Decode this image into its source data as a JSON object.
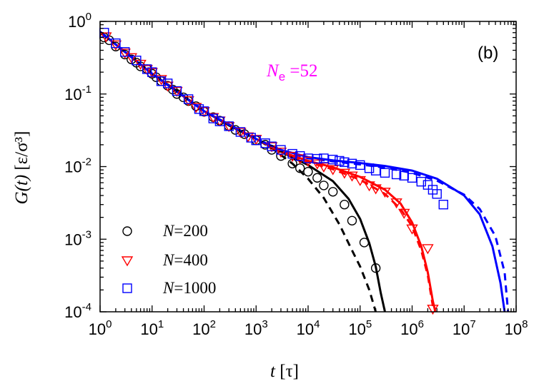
{
  "chart_data": {
    "type": "scatter",
    "panel_label": "(b)",
    "annotation": {
      "text": "N",
      "sub": "e",
      "rest": " =52",
      "color": "#ff00ff"
    },
    "xlabel": {
      "italic": "t",
      "unit": "[τ]"
    },
    "ylabel": {
      "italic": "G(t)",
      "unit": "[ε/σ³]"
    },
    "xscale": "log",
    "yscale": "log",
    "xlim": [
      1,
      100000000
    ],
    "ylim": [
      0.0001,
      1
    ],
    "x_ticks": [
      {
        "value": 1,
        "base": "10",
        "exp": "0"
      },
      {
        "value": 10,
        "base": "10",
        "exp": "1"
      },
      {
        "value": 100,
        "base": "10",
        "exp": "2"
      },
      {
        "value": 1000,
        "base": "10",
        "exp": "3"
      },
      {
        "value": 10000,
        "base": "10",
        "exp": "4"
      },
      {
        "value": 100000,
        "base": "10",
        "exp": "5"
      },
      {
        "value": 1000000,
        "base": "10",
        "exp": "6"
      },
      {
        "value": 10000000,
        "base": "10",
        "exp": "7"
      },
      {
        "value": 100000000,
        "base": "10",
        "exp": "8"
      }
    ],
    "y_ticks": [
      {
        "value": 1,
        "base": "10",
        "exp": "0"
      },
      {
        "value": 0.1,
        "base": "10",
        "exp": "-1"
      },
      {
        "value": 0.01,
        "base": "10",
        "exp": "-2"
      },
      {
        "value": 0.001,
        "base": "10",
        "exp": "-3"
      },
      {
        "value": 0.0001,
        "base": "10",
        "exp": "-4"
      }
    ],
    "legend_position": "bottom-left",
    "series": [
      {
        "name": "N = 200",
        "label_var": "N",
        "label_value": "=200",
        "marker": "circle",
        "color": "#000000",
        "points": [
          [
            1.2,
            0.6
          ],
          [
            1.5,
            0.55
          ],
          [
            2,
            0.45
          ],
          [
            3,
            0.35
          ],
          [
            4,
            0.3
          ],
          [
            5,
            0.27
          ],
          [
            6,
            0.24
          ],
          [
            8,
            0.22
          ],
          [
            10,
            0.19
          ],
          [
            12,
            0.17
          ],
          [
            15,
            0.15
          ],
          [
            20,
            0.13
          ],
          [
            25,
            0.115
          ],
          [
            30,
            0.1
          ],
          [
            40,
            0.09
          ],
          [
            50,
            0.08
          ],
          [
            70,
            0.068
          ],
          [
            100,
            0.057
          ],
          [
            150,
            0.048
          ],
          [
            200,
            0.043
          ],
          [
            300,
            0.036
          ],
          [
            400,
            0.032
          ],
          [
            600,
            0.028
          ],
          [
            1000,
            0.023
          ],
          [
            1500,
            0.02
          ],
          [
            2000,
            0.017
          ],
          [
            3000,
            0.014
          ],
          [
            5000,
            0.011
          ],
          [
            7000,
            0.0095
          ],
          [
            10000,
            0.0085
          ],
          [
            15000,
            0.007
          ],
          [
            20000,
            0.0055
          ],
          [
            30000,
            0.0045
          ],
          [
            50000,
            0.003
          ],
          [
            70000,
            0.0018
          ],
          [
            120000,
            0.0009
          ],
          [
            200000,
            0.0004
          ]
        ],
        "fit_solid": [
          [
            1,
            0.72
          ],
          [
            3,
            0.38
          ],
          [
            10,
            0.19
          ],
          [
            30,
            0.11
          ],
          [
            100,
            0.058
          ],
          [
            300,
            0.037
          ],
          [
            1000,
            0.024
          ],
          [
            3000,
            0.016
          ],
          [
            10000,
            0.0105
          ],
          [
            30000,
            0.0063
          ],
          [
            60000,
            0.0036
          ],
          [
            100000,
            0.0019
          ],
          [
            150000,
            0.00088
          ],
          [
            200000,
            0.00042
          ],
          [
            250000,
            0.00018
          ],
          [
            300000,
            0.0001
          ]
        ],
        "fit_dashed": [
          [
            1,
            0.72
          ],
          [
            3,
            0.38
          ],
          [
            10,
            0.19
          ],
          [
            30,
            0.11
          ],
          [
            100,
            0.058
          ],
          [
            300,
            0.037
          ],
          [
            1000,
            0.024
          ],
          [
            2000,
            0.018
          ],
          [
            5000,
            0.011
          ],
          [
            10000,
            0.0068
          ],
          [
            20000,
            0.0037
          ],
          [
            40000,
            0.0016
          ],
          [
            70000,
            0.0007
          ],
          [
            100000,
            0.00042
          ],
          [
            150000,
            0.0002
          ],
          [
            200000,
            0.0001
          ]
        ]
      },
      {
        "name": "N = 400",
        "label_var": "N",
        "label_value": "=400",
        "marker": "triangle-down",
        "color": "#ff0000",
        "points": [
          [
            1.3,
            0.62
          ],
          [
            2,
            0.48
          ],
          [
            3,
            0.37
          ],
          [
            4,
            0.32
          ],
          [
            6,
            0.26
          ],
          [
            8,
            0.22
          ],
          [
            10,
            0.2
          ],
          [
            15,
            0.16
          ],
          [
            20,
            0.13
          ],
          [
            30,
            0.11
          ],
          [
            50,
            0.082
          ],
          [
            70,
            0.066
          ],
          [
            100,
            0.058
          ],
          [
            150,
            0.048
          ],
          [
            200,
            0.043
          ],
          [
            300,
            0.036
          ],
          [
            500,
            0.03
          ],
          [
            700,
            0.026
          ],
          [
            1000,
            0.024
          ],
          [
            2000,
            0.019
          ],
          [
            3000,
            0.016
          ],
          [
            5000,
            0.014
          ],
          [
            7000,
            0.013
          ],
          [
            10000,
            0.012
          ],
          [
            15000,
            0.011
          ],
          [
            20000,
            0.01
          ],
          [
            30000,
            0.0092
          ],
          [
            50000,
            0.0082
          ],
          [
            70000,
            0.0075
          ],
          [
            100000,
            0.0065
          ],
          [
            150000,
            0.0055
          ],
          [
            200000,
            0.005
          ],
          [
            300000,
            0.0045
          ],
          [
            500000,
            0.0032
          ],
          [
            700000,
            0.0023
          ],
          [
            1000000,
            0.0014
          ],
          [
            2000000,
            0.00075
          ],
          [
            2500000,
            0.00011
          ]
        ],
        "fit_solid": [
          [
            1,
            0.72
          ],
          [
            10,
            0.19
          ],
          [
            100,
            0.058
          ],
          [
            1000,
            0.024
          ],
          [
            3000,
            0.016
          ],
          [
            10000,
            0.012
          ],
          [
            30000,
            0.0098
          ],
          [
            100000,
            0.0072
          ],
          [
            300000,
            0.0048
          ],
          [
            600000,
            0.0031
          ],
          [
            1000000,
            0.0017
          ],
          [
            1500000,
            0.0008
          ],
          [
            2000000,
            0.00035
          ],
          [
            2500000,
            0.00014
          ],
          [
            2800000,
            0.0001
          ]
        ],
        "fit_dashed": [
          [
            1,
            0.72
          ],
          [
            10,
            0.19
          ],
          [
            100,
            0.058
          ],
          [
            1000,
            0.024
          ],
          [
            3000,
            0.016
          ],
          [
            10000,
            0.0115
          ],
          [
            30000,
            0.0092
          ],
          [
            100000,
            0.0066
          ],
          [
            300000,
            0.0042
          ],
          [
            600000,
            0.0026
          ],
          [
            1000000,
            0.0015
          ],
          [
            1500000,
            0.0007
          ],
          [
            2000000,
            0.00032
          ],
          [
            2500000,
            0.00012
          ]
        ]
      },
      {
        "name": "N = 1000",
        "label_var": "N",
        "label_value": "=1000",
        "marker": "square",
        "color": "#0000ff",
        "points": [
          [
            1.2,
            0.7
          ],
          [
            2,
            0.5
          ],
          [
            3,
            0.38
          ],
          [
            5,
            0.29
          ],
          [
            8,
            0.22
          ],
          [
            10,
            0.2
          ],
          [
            15,
            0.15
          ],
          [
            20,
            0.14
          ],
          [
            30,
            0.11
          ],
          [
            50,
            0.085
          ],
          [
            80,
            0.062
          ],
          [
            100,
            0.058
          ],
          [
            150,
            0.046
          ],
          [
            200,
            0.042
          ],
          [
            300,
            0.036
          ],
          [
            500,
            0.03
          ],
          [
            800,
            0.025
          ],
          [
            1000,
            0.023
          ],
          [
            1500,
            0.021
          ],
          [
            2000,
            0.019
          ],
          [
            3000,
            0.017
          ],
          [
            5000,
            0.015
          ],
          [
            7000,
            0.014
          ],
          [
            10000,
            0.013
          ],
          [
            15000,
            0.0128
          ],
          [
            20000,
            0.013
          ],
          [
            30000,
            0.0125
          ],
          [
            40000,
            0.012
          ],
          [
            50000,
            0.0115
          ],
          [
            70000,
            0.011
          ],
          [
            100000,
            0.0105
          ],
          [
            150000,
            0.0095
          ],
          [
            200000,
            0.0088
          ],
          [
            300000,
            0.0082
          ],
          [
            500000,
            0.0078
          ],
          [
            700000,
            0.0075
          ],
          [
            1000000,
            0.007
          ],
          [
            1500000,
            0.0062
          ],
          [
            2000000,
            0.0056
          ],
          [
            2500000,
            0.0048
          ],
          [
            3000000,
            0.0042
          ],
          [
            4000000,
            0.003
          ]
        ],
        "fit_solid": [
          [
            1,
            0.72
          ],
          [
            10,
            0.19
          ],
          [
            100,
            0.058
          ],
          [
            1000,
            0.024
          ],
          [
            3000,
            0.017
          ],
          [
            10000,
            0.0135
          ],
          [
            30000,
            0.0122
          ],
          [
            100000,
            0.0112
          ],
          [
            300000,
            0.0102
          ],
          [
            1000000,
            0.0088
          ],
          [
            3000000,
            0.0068
          ],
          [
            10000000,
            0.004
          ],
          [
            20000000,
            0.0022
          ],
          [
            35000000,
            0.0008
          ],
          [
            50000000,
            0.00025
          ],
          [
            60000000,
            0.0001
          ]
        ],
        "fit_dashed": [
          [
            1,
            0.72
          ],
          [
            10,
            0.19
          ],
          [
            100,
            0.058
          ],
          [
            1000,
            0.024
          ],
          [
            3000,
            0.017
          ],
          [
            10000,
            0.013
          ],
          [
            30000,
            0.0118
          ],
          [
            100000,
            0.0107
          ],
          [
            300000,
            0.0097
          ],
          [
            1000000,
            0.0082
          ],
          [
            3000000,
            0.0064
          ],
          [
            10000000,
            0.0041
          ],
          [
            20000000,
            0.0026
          ],
          [
            40000000,
            0.0011
          ],
          [
            60000000,
            0.00035
          ],
          [
            70000000,
            0.0001
          ]
        ]
      }
    ]
  }
}
